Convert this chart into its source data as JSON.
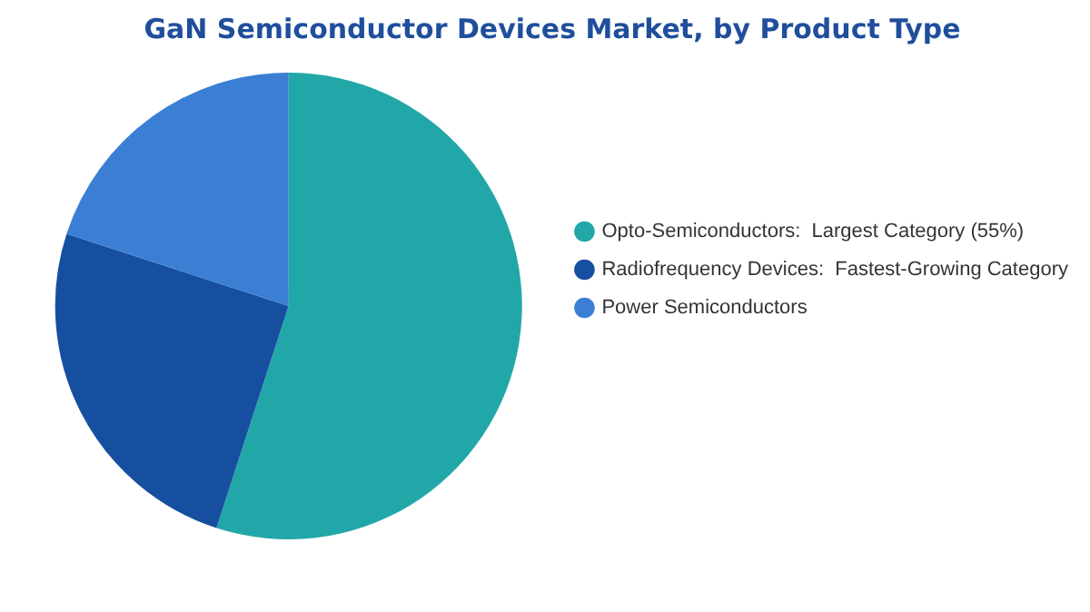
{
  "chart_data": {
    "type": "pie",
    "title": "GaN Semiconductor Devices Market, by Product Type",
    "categories": [
      "Opto-Semiconductors:  Largest Category (55%)",
      "Radiofrequency Devices:  Fastest-Growing Category",
      "Power Semiconductors"
    ],
    "values": [
      55,
      25,
      20
    ],
    "colors": [
      "#22a7a9",
      "#174fa0",
      "#3a7fd4"
    ],
    "legend": "right"
  }
}
